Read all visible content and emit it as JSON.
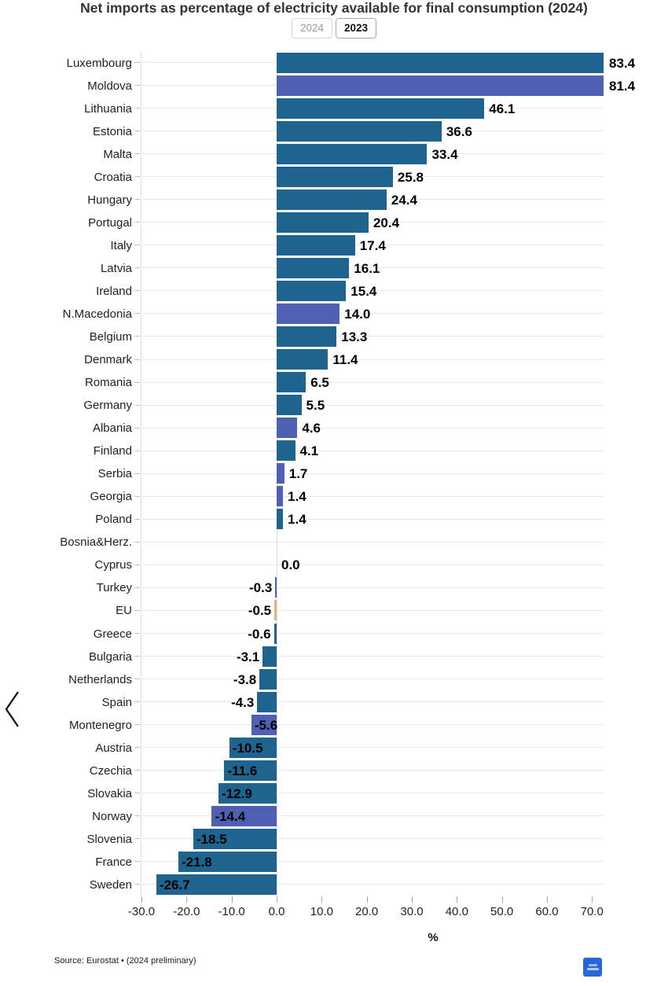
{
  "header": {
    "title": "Net imports as percentage of electricity available for final consumption (2024)",
    "toggles": [
      {
        "label": "2024",
        "active": false
      },
      {
        "label": "2023",
        "active": true
      }
    ]
  },
  "nav": {
    "prev_icon": "chevron-left"
  },
  "footer": {
    "source": "Source: Eurostat • (2024 preliminary)"
  },
  "colors": {
    "eu_member": "#1f648f",
    "non_eu": "#4f60b2",
    "eu_aggregate": "#e8b287",
    "logo_blue": "#2767d9"
  },
  "chart_data": {
    "type": "bar",
    "orientation": "horizontal",
    "title": "Net imports as percentage of electricity available for final consumption (2024)",
    "xlabel": "%",
    "xlim": [
      -30,
      72.6
    ],
    "grid": true,
    "x_tick_values": [
      -30,
      -20,
      -10,
      0,
      10,
      20,
      30,
      40,
      50,
      60,
      70
    ],
    "x_tick_labels": [
      "-30.0",
      "-20.0",
      "-10.0",
      "0.0",
      "10.0",
      "20.0",
      "30.0",
      "40.0",
      "50.0",
      "60.0",
      "70.0"
    ],
    "bars": [
      {
        "name": "Luxembourg",
        "value": 83.4,
        "label": "83.4",
        "group": "eu_member"
      },
      {
        "name": "Moldova",
        "value": 81.4,
        "label": "81.4",
        "group": "non_eu"
      },
      {
        "name": "Lithuania",
        "value": 46.1,
        "label": "46.1",
        "group": "eu_member"
      },
      {
        "name": "Estonia",
        "value": 36.6,
        "label": "36.6",
        "group": "eu_member"
      },
      {
        "name": "Malta",
        "value": 33.4,
        "label": "33.4",
        "group": "eu_member"
      },
      {
        "name": "Croatia",
        "value": 25.8,
        "label": "25.8",
        "group": "eu_member"
      },
      {
        "name": "Hungary",
        "value": 24.4,
        "label": "24.4",
        "group": "eu_member"
      },
      {
        "name": "Portugal",
        "value": 20.4,
        "label": "20.4",
        "group": "eu_member"
      },
      {
        "name": "Italy",
        "value": 17.4,
        "label": "17.4",
        "group": "eu_member"
      },
      {
        "name": "Latvia",
        "value": 16.1,
        "label": "16.1",
        "group": "eu_member"
      },
      {
        "name": "Ireland",
        "value": 15.4,
        "label": "15.4",
        "group": "eu_member"
      },
      {
        "name": "N.Macedonia",
        "value": 14.0,
        "label": "14.0",
        "group": "non_eu"
      },
      {
        "name": "Belgium",
        "value": 13.3,
        "label": "13.3",
        "group": "eu_member"
      },
      {
        "name": "Denmark",
        "value": 11.4,
        "label": "11.4",
        "group": "eu_member"
      },
      {
        "name": "Romania",
        "value": 6.5,
        "label": "6.5",
        "group": "eu_member"
      },
      {
        "name": "Germany",
        "value": 5.5,
        "label": "5.5",
        "group": "eu_member"
      },
      {
        "name": "Albania",
        "value": 4.6,
        "label": "4.6",
        "group": "non_eu"
      },
      {
        "name": "Finland",
        "value": 4.1,
        "label": "4.1",
        "group": "eu_member"
      },
      {
        "name": "Serbia",
        "value": 1.7,
        "label": "1.7",
        "group": "non_eu"
      },
      {
        "name": "Georgia",
        "value": 1.4,
        "label": "1.4",
        "group": "non_eu"
      },
      {
        "name": "Poland",
        "value": 1.4,
        "label": "1.4",
        "group": "eu_member"
      },
      {
        "name": "Bosnia&Herz.",
        "value": null,
        "label": "",
        "group": "non_eu"
      },
      {
        "name": "Cyprus",
        "value": 0.0,
        "label": "0.0",
        "group": "eu_member"
      },
      {
        "name": "Turkey",
        "value": -0.3,
        "label": "-0.3",
        "group": "non_eu"
      },
      {
        "name": "EU",
        "value": -0.5,
        "label": "-0.5",
        "group": "eu_aggregate"
      },
      {
        "name": "Greece",
        "value": -0.6,
        "label": "-0.6",
        "group": "eu_member"
      },
      {
        "name": "Bulgaria",
        "value": -3.1,
        "label": "-3.1",
        "group": "eu_member"
      },
      {
        "name": "Netherlands",
        "value": -3.8,
        "label": "-3.8",
        "group": "eu_member"
      },
      {
        "name": "Spain",
        "value": -4.3,
        "label": "-4.3",
        "group": "eu_member"
      },
      {
        "name": "Montenegro",
        "value": -5.6,
        "label": "-5.6",
        "group": "non_eu"
      },
      {
        "name": "Austria",
        "value": -10.5,
        "label": "-10.5",
        "group": "eu_member"
      },
      {
        "name": "Czechia",
        "value": -11.6,
        "label": "-11.6",
        "group": "eu_member"
      },
      {
        "name": "Slovakia",
        "value": -12.9,
        "label": "-12.9",
        "group": "eu_member"
      },
      {
        "name": "Norway",
        "value": -14.4,
        "label": "-14.4",
        "group": "non_eu"
      },
      {
        "name": "Slovenia",
        "value": -18.5,
        "label": "-18.5",
        "group": "eu_member"
      },
      {
        "name": "France",
        "value": -21.8,
        "label": "-21.8",
        "group": "eu_member"
      },
      {
        "name": "Sweden",
        "value": -26.7,
        "label": "-26.7",
        "group": "eu_member"
      }
    ]
  }
}
